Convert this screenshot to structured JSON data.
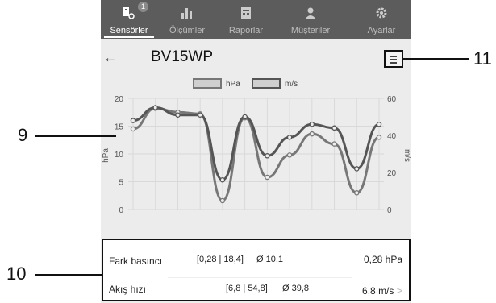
{
  "nav": [
    {
      "label": "Sensörler",
      "icon": "sensor-icon",
      "badge": "1",
      "active": true
    },
    {
      "label": "Ölçümler",
      "icon": "bar-chart-icon",
      "active": false
    },
    {
      "label": "Raporlar",
      "icon": "report-icon",
      "active": false
    },
    {
      "label": "Müşteriler",
      "icon": "customer-icon",
      "active": false
    },
    {
      "label": "Ayarlar",
      "icon": "gear-icon",
      "active": false
    }
  ],
  "header": {
    "back_icon": "back-arrow-icon",
    "title": "BV15WP",
    "menu_icon": "hamburger-menu-icon"
  },
  "chart_data": {
    "type": "line",
    "legend": [
      "hPa",
      "m/s"
    ],
    "ylabel": "hPa",
    "y2label": "m/s",
    "ylim": [
      0,
      20
    ],
    "y2lim": [
      0,
      60
    ],
    "yticks": [
      0,
      5,
      10,
      15,
      20
    ],
    "y2ticks": [
      0,
      20,
      40,
      60
    ],
    "x": [
      0,
      1,
      2,
      3,
      4,
      5,
      6,
      7,
      8,
      9,
      10,
      11
    ],
    "series": [
      {
        "name": "hPa",
        "axis": "left",
        "color": "#777777",
        "values": [
          14.5,
          18.2,
          17.5,
          17.2,
          1.6,
          16.5,
          5.8,
          9.8,
          13.6,
          11.8,
          3.0,
          13.0
        ]
      },
      {
        "name": "m/s",
        "axis": "right",
        "color": "#555555",
        "values": [
          48,
          55,
          51,
          51,
          16,
          50,
          29,
          39,
          46,
          44,
          22,
          46
        ]
      }
    ]
  },
  "readings": [
    {
      "name": "Fark basıncı",
      "range": "[0,28 | 18,4]",
      "avg": "Ø 10,1",
      "value": "0,28 hPa"
    },
    {
      "name": "Akış hızı",
      "range": "[6,8 | 54,8]",
      "avg": "Ø 39,8",
      "value": "6,8 m/s"
    }
  ],
  "callouts": {
    "chart": "9",
    "readings": "10",
    "menu": "11"
  }
}
